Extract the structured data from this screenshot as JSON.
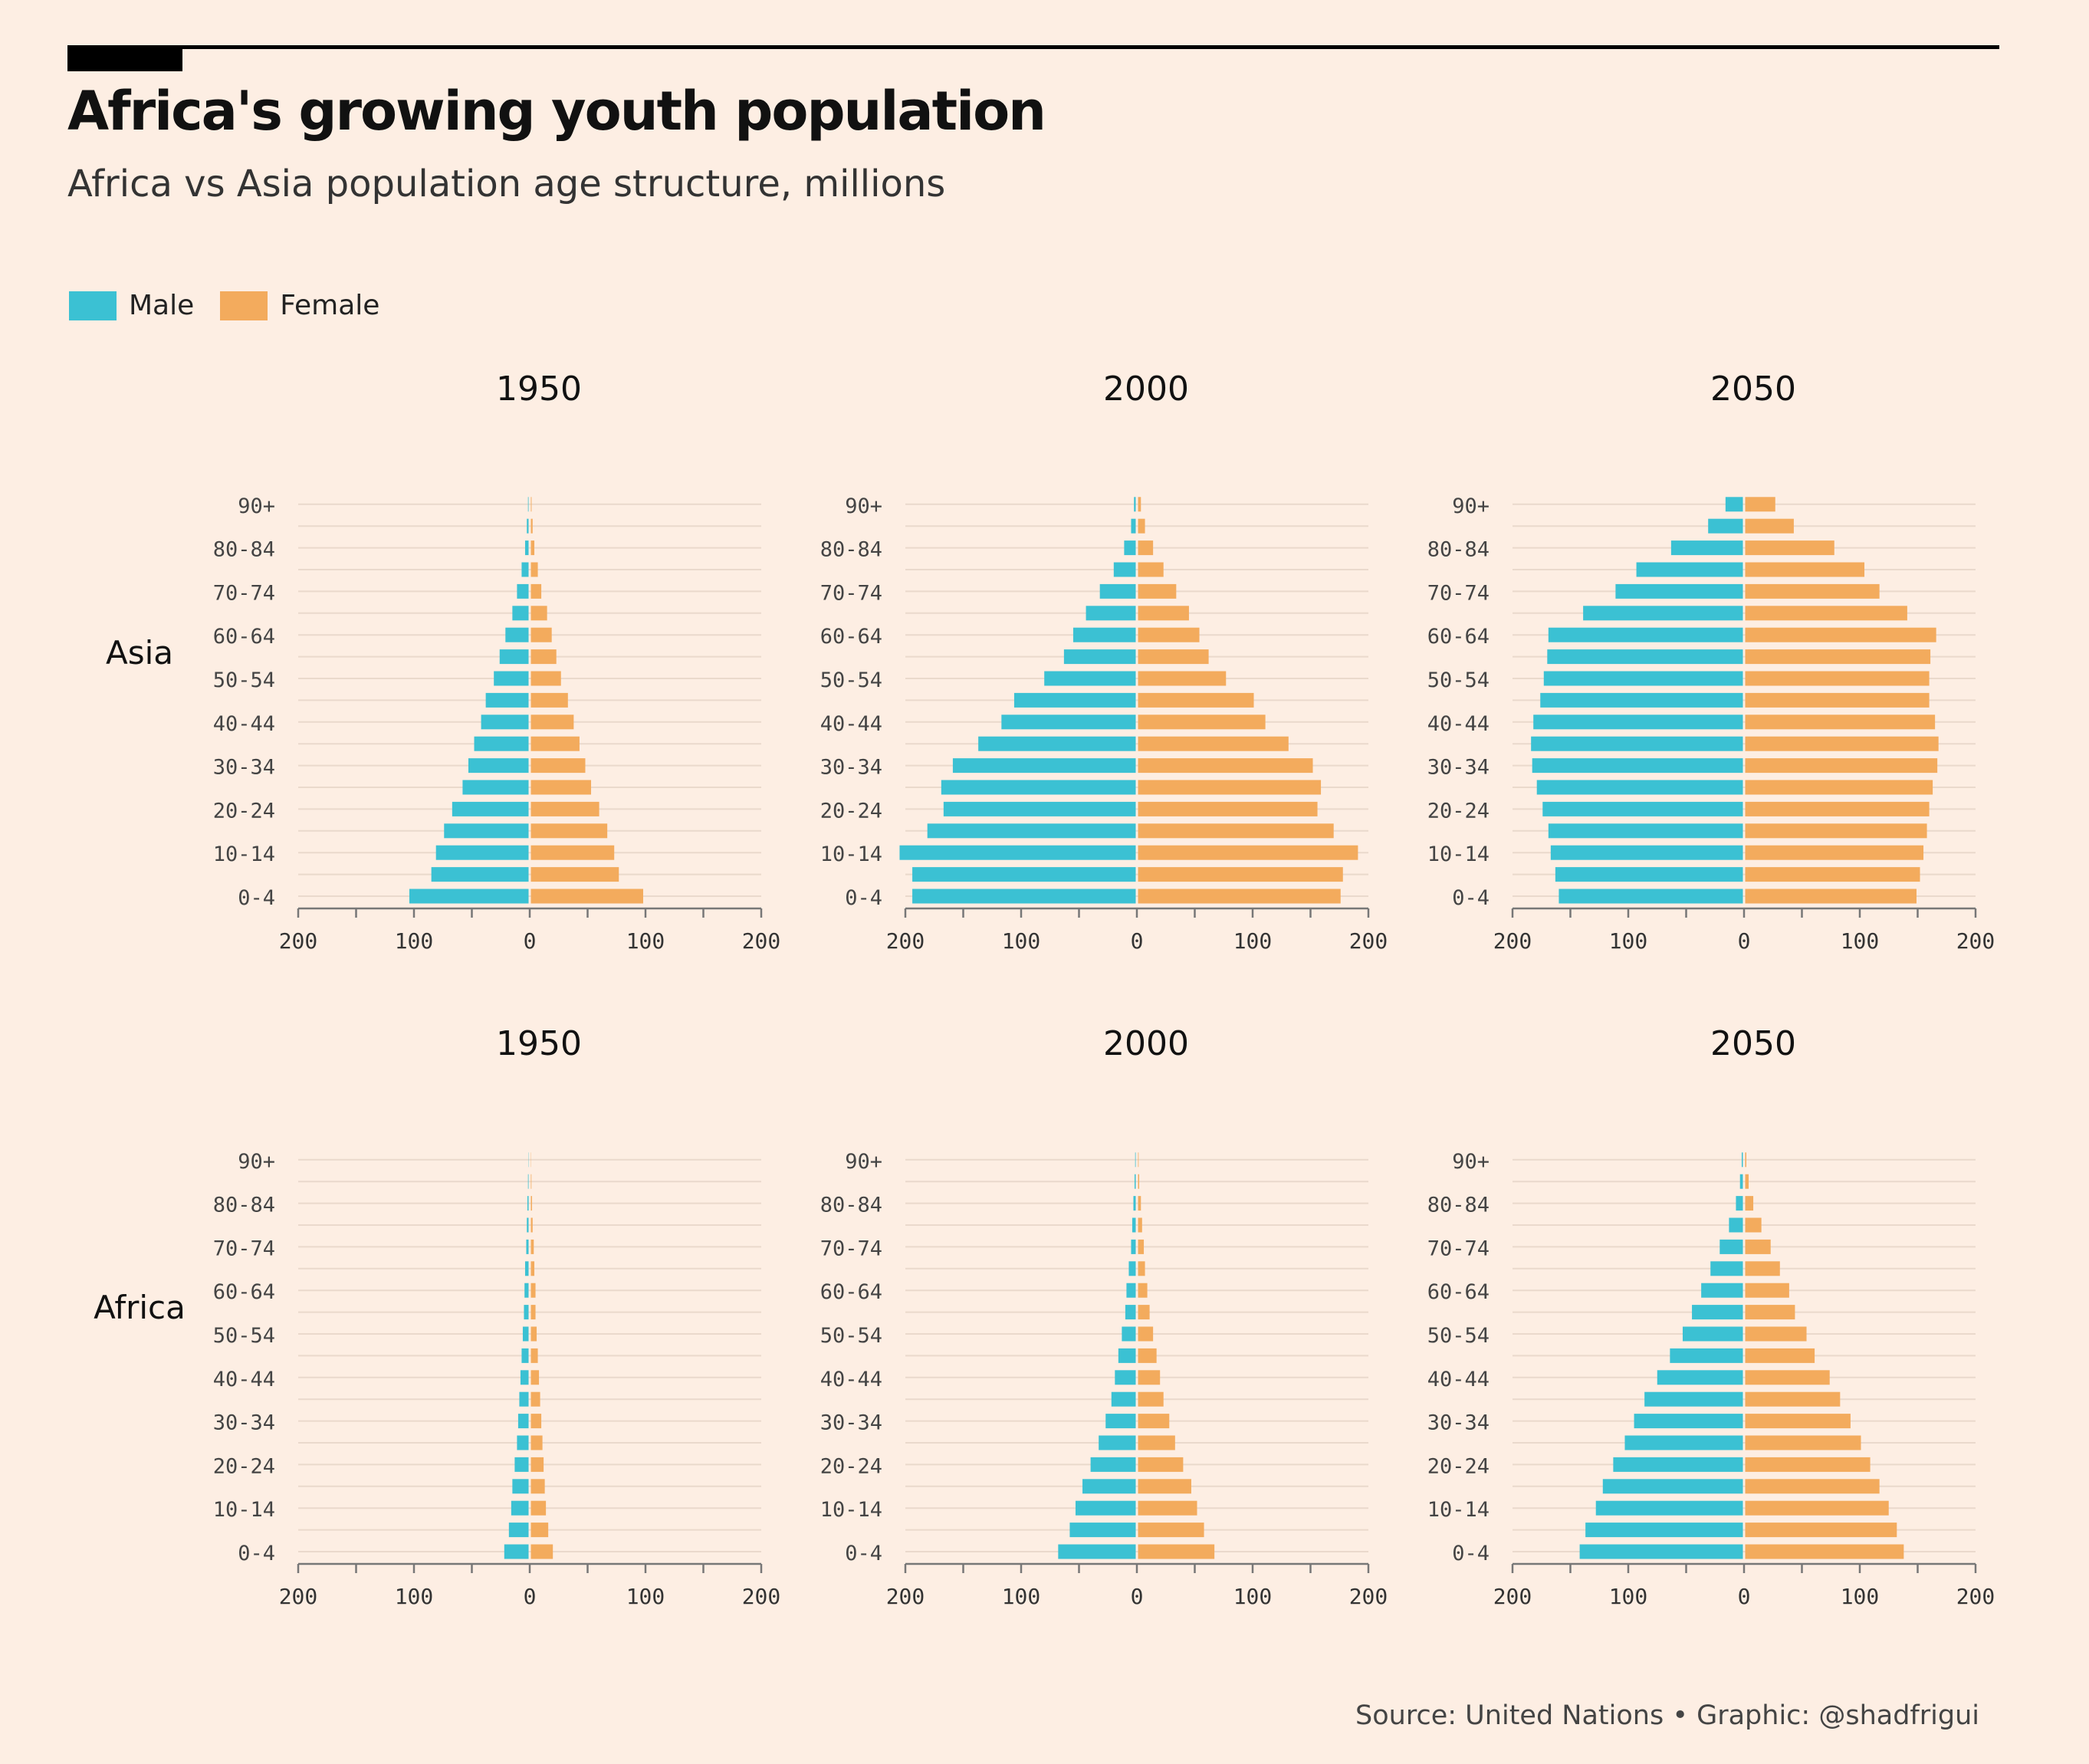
{
  "header": {
    "title": "Africa's growing youth population",
    "subtitle": "Africa vs Asia population age structure, millions"
  },
  "legend": {
    "male_label": "Male",
    "female_label": "Female",
    "male_color": "#3BC1D3",
    "female_color": "#F3AB5D"
  },
  "footer": {
    "source": "Source: United Nations • Graphic: @shadfrigui"
  },
  "chart_data": {
    "type": "bar",
    "orientation": "horizontal-population-pyramid",
    "units": "millions",
    "age_groups": [
      "0-4",
      "5-9",
      "10-14",
      "15-19",
      "20-24",
      "25-29",
      "30-34",
      "35-39",
      "40-44",
      "45-49",
      "50-54",
      "55-59",
      "60-64",
      "65-69",
      "70-74",
      "75-79",
      "80-84",
      "85-89",
      "90+"
    ],
    "age_tick_labels": [
      "0-4",
      "10-14",
      "20-24",
      "30-34",
      "40-44",
      "50-54",
      "60-64",
      "70-74",
      "80-84",
      "90+"
    ],
    "x_ticks": [
      200,
      100,
      0,
      100,
      200
    ],
    "xlim": [
      -200,
      200
    ],
    "regions": [
      "Asia",
      "Africa"
    ],
    "years": [
      "1950",
      "2000",
      "2050"
    ],
    "panels": [
      {
        "region": "Asia",
        "year": "1950",
        "male": [
          103,
          84,
          80,
          73,
          66,
          57,
          52,
          47,
          41,
          37,
          30,
          25,
          20,
          14,
          10,
          6,
          3,
          1.5,
          0.5
        ],
        "female": [
          97,
          76,
          72,
          66,
          59,
          52,
          47,
          42,
          37,
          32,
          26,
          22,
          18,
          14,
          9,
          6,
          3,
          1.5,
          0.6
        ]
      },
      {
        "region": "Asia",
        "year": "2000",
        "male": [
          193,
          193,
          204,
          180,
          166,
          168,
          158,
          136,
          116,
          105,
          79,
          62,
          54,
          43,
          31,
          19,
          10,
          4,
          1.5
        ],
        "female": [
          175,
          177,
          190,
          169,
          155,
          158,
          151,
          130,
          110,
          100,
          76,
          61,
          53,
          44,
          33,
          22,
          13,
          6,
          2.5
        ]
      },
      {
        "region": "Asia",
        "year": "2050",
        "male": [
          159,
          162,
          166,
          168,
          173,
          178,
          182,
          183,
          181,
          175,
          172,
          169,
          168,
          138,
          110,
          92,
          62,
          30,
          15
        ],
        "female": [
          148,
          151,
          154,
          157,
          159,
          162,
          166,
          167,
          164,
          159,
          159,
          160,
          165,
          140,
          116,
          103,
          77,
          42,
          26
        ]
      },
      {
        "region": "Africa",
        "year": "1950",
        "male": [
          21,
          17,
          15,
          14,
          12,
          10,
          9,
          8,
          7,
          6,
          5,
          4,
          3.5,
          3,
          2,
          1.5,
          1,
          0.5,
          0.2
        ],
        "female": [
          19,
          15,
          13,
          12,
          11,
          10,
          9,
          8,
          7,
          6,
          5,
          4,
          4,
          3,
          2.5,
          1.5,
          1,
          0.5,
          0.2
        ]
      },
      {
        "region": "Africa",
        "year": "2000",
        "male": [
          67,
          57,
          52,
          46,
          39,
          32,
          26,
          21,
          18,
          15,
          12,
          9,
          8,
          6,
          4,
          3,
          2,
          1,
          0.5
        ],
        "female": [
          66,
          57,
          51,
          46,
          39,
          32,
          27,
          22,
          19,
          16,
          13,
          10,
          8,
          6,
          5,
          3.5,
          2.5,
          1,
          0.5
        ]
      },
      {
        "region": "Africa",
        "year": "2050",
        "male": [
          141,
          136,
          127,
          121,
          112,
          102,
          94,
          85,
          74,
          63,
          52,
          44,
          36,
          28,
          20,
          12,
          6,
          2.5,
          1
        ],
        "female": [
          137,
          131,
          124,
          116,
          108,
          100,
          91,
          82,
          73,
          60,
          53,
          43,
          38,
          30,
          22,
          14,
          7,
          3,
          1
        ]
      }
    ]
  }
}
